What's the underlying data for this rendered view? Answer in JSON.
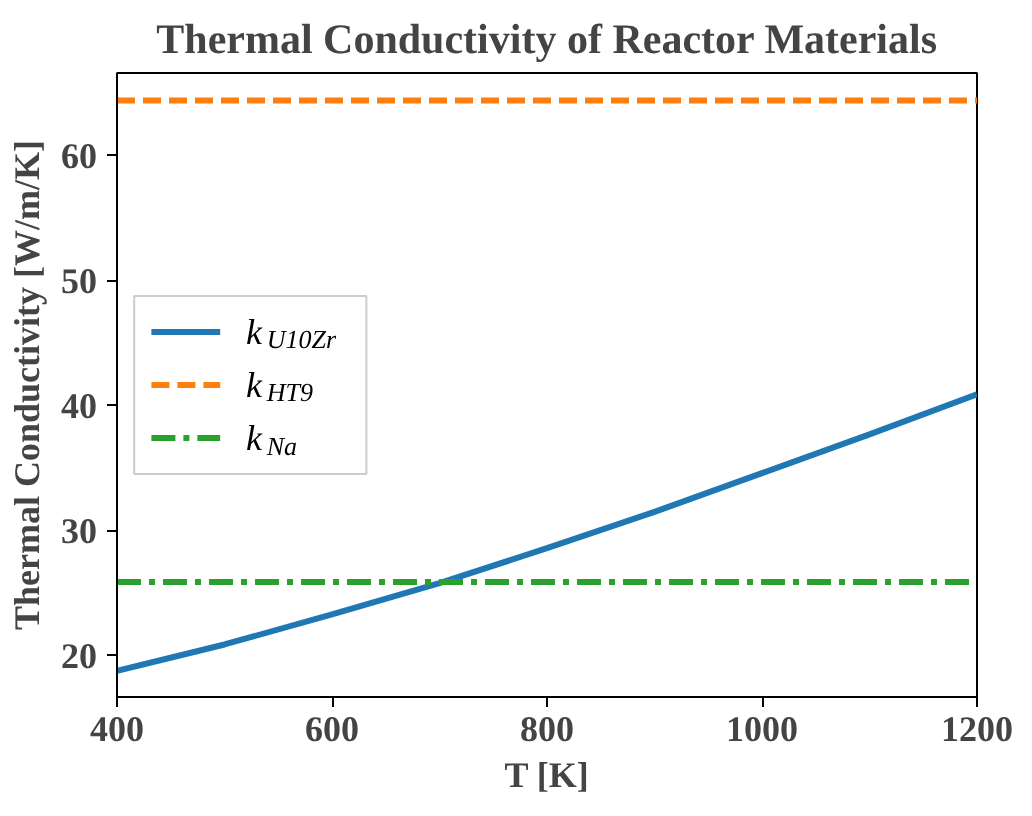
{
  "chart_data": {
    "type": "line",
    "title": "Thermal Conductivity of Reactor Materials",
    "xlabel": "T [K]",
    "ylabel": "Thermal Conductivity [W/m/K]",
    "x": [
      400,
      500,
      600,
      700,
      800,
      900,
      1000,
      1100,
      1200
    ],
    "series": [
      {
        "name": "k$_{U10Zr}$",
        "color": "#1f77b4",
        "line_style": "solid",
        "values": [
          18.8,
          20.9,
          23.3,
          25.8,
          28.6,
          31.5,
          34.6,
          37.7,
          40.9
        ]
      },
      {
        "name": "k$_{HT9}$",
        "color": "#ff7f0e",
        "line_style": "dashed",
        "values": [
          64.4,
          64.4,
          64.4,
          64.4,
          64.4,
          64.4,
          64.4,
          64.4,
          64.4
        ]
      },
      {
        "name": "k$_{Na}$",
        "color": "#2ca02c",
        "line_style": "dashdot",
        "values": [
          25.9,
          25.9,
          25.9,
          25.9,
          25.9,
          25.9,
          25.9,
          25.9,
          25.9
        ]
      }
    ],
    "xlim": [
      400,
      1200
    ],
    "ylim": [
      16.7,
      66.6
    ],
    "xticks": [
      400,
      600,
      800,
      1000,
      1200
    ],
    "yticks": [
      20,
      30,
      40,
      50,
      60
    ],
    "grid": false,
    "legend": "center left"
  }
}
